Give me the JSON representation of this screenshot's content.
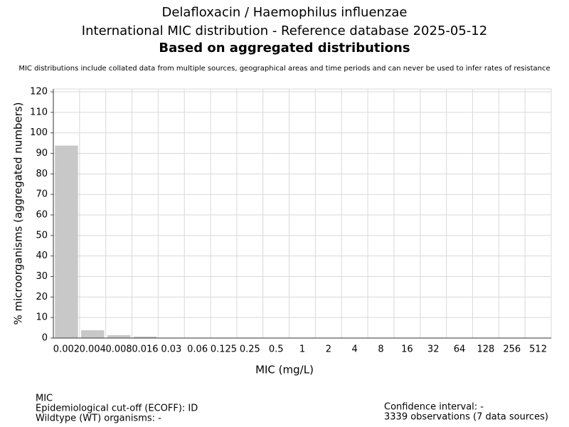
{
  "chart_data": {
    "type": "bar",
    "title": "Delafloxacin / Haemophilus influenzae",
    "title_line2": "International MIC distribution - Reference database 2025-05-12",
    "title_line3": "Based on aggregated distributions",
    "subtitle": "MIC distributions include collated data from multiple sources, geographical areas and time periods and can never be used to infer rates of resistance",
    "x_label": "MIC (mg/L)",
    "y_label": "% microorganisms (aggregated numbers)",
    "categories": [
      "0.002",
      "0.004",
      "0.008",
      "0.016",
      "0.03",
      "0.06",
      "0.125",
      "0.25",
      "0.5",
      "1",
      "2",
      "4",
      "8",
      "16",
      "32",
      "64",
      "128",
      "256",
      "512"
    ],
    "values": [
      93.8,
      3.8,
      1.4,
      0.7,
      0.2,
      0.2,
      0.2,
      0.2,
      0,
      0,
      0,
      0,
      0,
      0,
      0.2,
      0,
      0,
      0,
      0
    ],
    "color": "#c8c8c8",
    "ylim": [
      0,
      121.4
    ],
    "yticks": [
      0,
      10,
      20,
      30,
      40,
      50,
      60,
      70,
      80,
      90,
      100,
      110,
      120
    ],
    "grid": true,
    "footer_left": [
      "MIC",
      "Epidemiological cut-off (ECOFF): ID",
      "Wildtype (WT) organisms:  -"
    ],
    "footer_right": [
      "Confidence interval: -",
      "3339 observations (7 data sources)"
    ]
  }
}
